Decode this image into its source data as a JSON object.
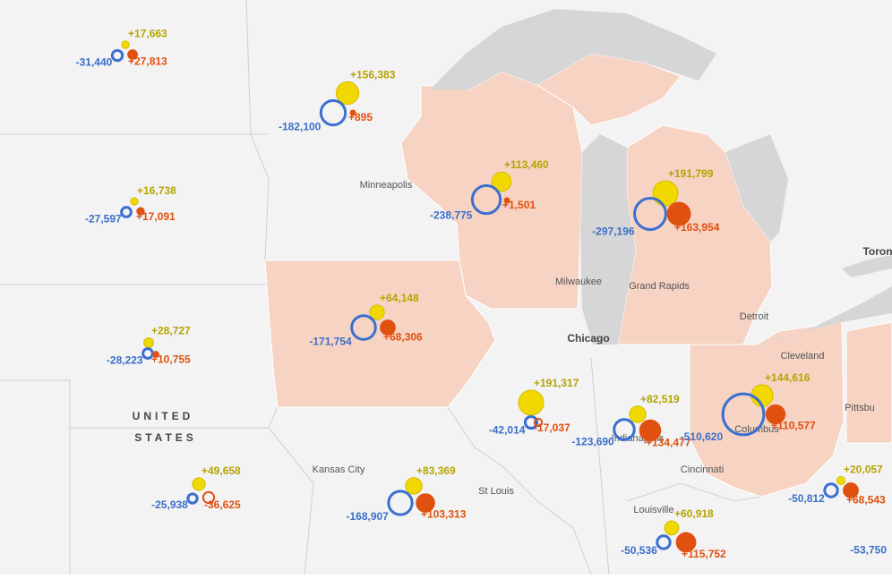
{
  "map": {
    "places": [
      "Minneapolis",
      "Milwaukee",
      "Grand Rapids",
      "Chicago",
      "Detroit",
      "Cleveland",
      "Toron",
      "Pittsbu",
      "Kansas City",
      "St Louis",
      "Cincinnati",
      "Columbus",
      "Indianapolis",
      "Louisville",
      "UNITED",
      "STATES"
    ],
    "clusters": [
      {
        "loss": {
          "value": -31440,
          "label": "-31,440"
        },
        "gain": {
          "value": 17663,
          "label": "+17,663"
        },
        "net": {
          "value": 27813,
          "label": "+27,813"
        }
      },
      {
        "loss": {
          "value": -182100,
          "label": "-182,100"
        },
        "gain": {
          "value": 156383,
          "label": "+156,383"
        },
        "net": {
          "value": 895,
          "label": "+895"
        }
      },
      {
        "loss": {
          "value": -27597,
          "label": "-27,597"
        },
        "gain": {
          "value": 16738,
          "label": "+16,738"
        },
        "net": {
          "value": 17091,
          "label": "+17,091"
        }
      },
      {
        "loss": {
          "value": -238775,
          "label": "-238,775"
        },
        "gain": {
          "value": 113460,
          "label": "+113,460"
        },
        "net": {
          "value": 1501,
          "label": "+1,501"
        }
      },
      {
        "loss": {
          "value": -297196,
          "label": "-297,196"
        },
        "gain": {
          "value": 191799,
          "label": "+191,799"
        },
        "net": {
          "value": 163954,
          "label": "+163,954"
        }
      },
      {
        "loss": {
          "value": -171754,
          "label": "-171,754"
        },
        "gain": {
          "value": 64148,
          "label": "+64,148"
        },
        "net": {
          "value": 68306,
          "label": "+68,306"
        }
      },
      {
        "loss": {
          "value": -28223,
          "label": "-28,223"
        },
        "gain": {
          "value": 28727,
          "label": "+28,727"
        },
        "net": {
          "value": 10755,
          "label": "+10,755"
        }
      },
      {
        "loss": {
          "value": -42014,
          "label": "-42,014"
        },
        "gain": {
          "value": 191317,
          "label": "+191,317"
        },
        "net": {
          "value": -17037,
          "label": "-17,037"
        }
      },
      {
        "loss": {
          "value": -123690,
          "label": "-123,690"
        },
        "gain": {
          "value": 82519,
          "label": "+82,519"
        },
        "net": {
          "value": 134477,
          "label": "+134,477"
        }
      },
      {
        "loss": {
          "value": -510620,
          "label": "-510,620"
        },
        "gain": {
          "value": 144616,
          "label": "+144,616"
        },
        "net": {
          "value": 110577,
          "label": "+110,577"
        }
      },
      {
        "loss": {
          "value": -25938,
          "label": "-25,938"
        },
        "gain": {
          "value": 49658,
          "label": "+49,658"
        },
        "net": {
          "value": -36625,
          "label": "-36,625"
        }
      },
      {
        "loss": {
          "value": -168907,
          "label": "-168,907"
        },
        "gain": {
          "value": 83369,
          "label": "+83,369"
        },
        "net": {
          "value": 103313,
          "label": "+103,313"
        }
      },
      {
        "loss": {
          "value": -50536,
          "label": "-50,536"
        },
        "gain": {
          "value": 60918,
          "label": "+60,918"
        },
        "net": {
          "value": 115752,
          "label": "+115,752"
        }
      },
      {
        "loss": {
          "value": -50812,
          "label": "-50,812"
        },
        "gain": {
          "value": 20057,
          "label": "+20,057"
        },
        "net": {
          "value": 68543,
          "label": "+68,543"
        }
      },
      {
        "loss": {
          "value": -53750,
          "label": "-53,750"
        }
      }
    ]
  }
}
